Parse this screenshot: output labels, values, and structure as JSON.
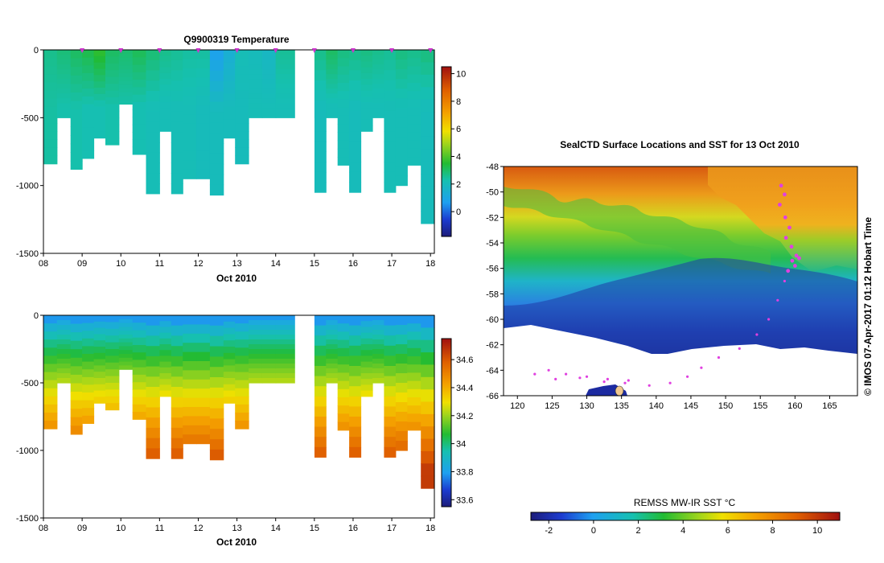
{
  "chart_data": [
    {
      "type": "heatmap",
      "title": "Q9900319  Temperature",
      "xlabel": "Oct 2010",
      "ylabel": "",
      "x_tick_labels": [
        "08",
        "09",
        "10",
        "11",
        "12",
        "13",
        "14",
        "15",
        "16",
        "17",
        "18"
      ],
      "y_tick_labels": [
        "0",
        "-500",
        "-1000",
        "-1500"
      ],
      "xlim": [
        8,
        18.1
      ],
      "ylim": [
        -1500,
        0
      ],
      "colorbar_ticks": [
        "0",
        "2",
        "4",
        "6",
        "8",
        "10"
      ],
      "colorbar_range": [
        -1.8,
        10.5
      ],
      "profile_days": [
        8,
        8.35,
        8.7,
        9,
        9.3,
        9.6,
        9.95,
        10.3,
        10.65,
        11,
        11.3,
        11.6,
        11.95,
        12.3,
        12.65,
        12.95,
        13.3,
        13.65,
        14,
        15,
        15.3,
        15.6,
        15.9,
        16.2,
        16.5,
        16.8,
        17.1,
        17.4,
        17.75
      ],
      "profile_depths": [
        -840,
        -500,
        -880,
        -800,
        -650,
        -700,
        -400,
        -770,
        -1060,
        -600,
        -1060,
        -950,
        -950,
        -1070,
        -650,
        -840,
        -500,
        -500,
        -500,
        -1050,
        -500,
        -850,
        -1050,
        -600,
        -500,
        -1050,
        -1000,
        -850,
        -1280
      ],
      "profile_surface_temps": [
        2.6,
        2.8,
        3.0,
        3.2,
        3.6,
        3.0,
        2.9,
        3.1,
        2.8,
        2.6,
        2.5,
        2.4,
        2.4,
        0.8,
        1.4,
        2.1,
        2.0,
        1.8,
        2.5,
        2.6,
        3.0,
        2.7,
        2.6,
        2.7,
        2.6,
        2.5,
        2.7,
        2.6,
        2.7
      ],
      "profile_deep_temps": [
        2.4,
        2.3,
        2.3,
        2.2,
        2.2,
        2.3,
        2.3,
        2.2,
        2.1,
        2.1,
        2.1,
        2.1,
        2.0,
        2.0,
        2.0,
        2.0,
        2.1,
        2.1,
        2.1,
        2.0,
        2.1,
        2.1,
        2.0,
        2.1,
        2.1,
        2.1,
        2.1,
        2.1,
        2.0
      ],
      "marker_days": [
        9,
        10,
        11,
        12,
        13,
        14,
        15,
        16,
        17,
        18
      ]
    },
    {
      "type": "heatmap",
      "title": "",
      "xlabel": "Oct 2010",
      "ylabel": "",
      "x_tick_labels": [
        "08",
        "09",
        "10",
        "11",
        "12",
        "13",
        "14",
        "15",
        "16",
        "17",
        "18"
      ],
      "y_tick_labels": [
        "0",
        "-500",
        "-1000",
        "-1500"
      ],
      "xlim": [
        8,
        18.1
      ],
      "ylim": [
        -1500,
        0
      ],
      "colorbar_ticks": [
        "34.6",
        "34.4",
        "34.2",
        "34",
        "33.8",
        "33.6"
      ],
      "colorbar_range": [
        33.55,
        34.75
      ],
      "profile_days": [
        8,
        8.35,
        8.7,
        9,
        9.3,
        9.6,
        9.95,
        10.3,
        10.65,
        11,
        11.3,
        11.6,
        11.95,
        12.3,
        12.65,
        12.95,
        13.3,
        13.65,
        14,
        15,
        15.3,
        15.6,
        15.9,
        16.2,
        16.5,
        16.8,
        17.1,
        17.4,
        17.75
      ],
      "profile_depths": [
        -840,
        -500,
        -880,
        -800,
        -650,
        -700,
        -400,
        -770,
        -1060,
        -600,
        -1060,
        -950,
        -950,
        -1070,
        -650,
        -840,
        -500,
        -500,
        -500,
        -1050,
        -500,
        -850,
        -1050,
        -600,
        -500,
        -1050,
        -1000,
        -850,
        -1280
      ],
      "surface_salinity": 33.78,
      "deep_salinity": 34.66
    },
    {
      "type": "heatmap",
      "title": "SealCTD Surface Locations and SST for 13 Oct 2010",
      "x_tick_labels": [
        "120",
        "125",
        "130",
        "135",
        "140",
        "145",
        "150",
        "155",
        "160",
        "165"
      ],
      "y_tick_labels": [
        "-48",
        "-50",
        "-52",
        "-54",
        "-56",
        "-58",
        "-60",
        "-62",
        "-64",
        "-66"
      ],
      "xlim": [
        118,
        169
      ],
      "ylim": [
        -66,
        -48
      ],
      "colorbar_label": "REMSS MW-IR SST °C",
      "colorbar_ticks": [
        "-2",
        "0",
        "2",
        "4",
        "6",
        "8",
        "10"
      ],
      "colorbar_range": [
        -2.8,
        11
      ],
      "side_label": "© IMOS 07-Apr-2017 01:12 Hobart Time",
      "track_points": [
        [
          158,
          -49.5
        ],
        [
          158.5,
          -50.2
        ],
        [
          157.8,
          -51.0
        ],
        [
          158.6,
          -52.0
        ],
        [
          159.2,
          -52.8
        ],
        [
          158.7,
          -53.6
        ],
        [
          159.5,
          -54.3
        ],
        [
          160.2,
          -55.0
        ],
        [
          159.6,
          -55.4
        ],
        [
          160.6,
          -55.2
        ],
        [
          160.0,
          -55.8
        ],
        [
          159.0,
          -56.2
        ],
        [
          158.5,
          -57.0
        ],
        [
          157.5,
          -58.5
        ],
        [
          156.2,
          -60.0
        ],
        [
          154.5,
          -61.2
        ],
        [
          152.0,
          -62.3
        ],
        [
          149.0,
          -63.0
        ],
        [
          146.5,
          -63.8
        ],
        [
          144.5,
          -64.5
        ],
        [
          142.0,
          -65.0
        ],
        [
          139.0,
          -65.2
        ],
        [
          136.0,
          -64.8
        ],
        [
          133.0,
          -64.7
        ],
        [
          130.0,
          -64.5
        ],
        [
          127.0,
          -64.3
        ],
        [
          124.5,
          -64.0
        ],
        [
          122.5,
          -64.3
        ],
        [
          125.5,
          -64.7
        ],
        [
          129.0,
          -64.6
        ],
        [
          132.5,
          -64.9
        ],
        [
          135.5,
          -65.0
        ]
      ]
    }
  ]
}
